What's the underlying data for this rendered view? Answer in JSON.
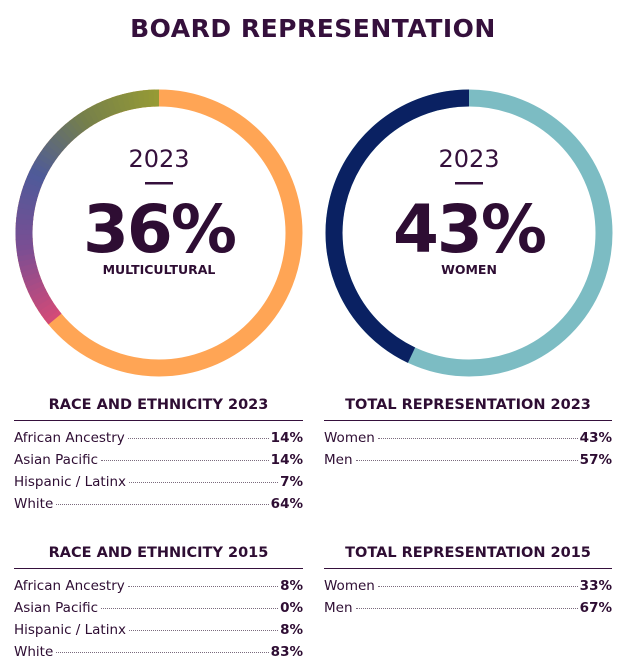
{
  "title": "BOARD REPRESENTATION",
  "chart_data": [
    {
      "type": "pie",
      "variant": "donut",
      "year": "2023",
      "center_value": "36%",
      "center_label": "MULTICULTURAL",
      "slices": [
        {
          "name": "Multicultural",
          "value": 36,
          "color": "gradient"
        },
        {
          "name": "",
          "value": 64,
          "color": "#FFA555"
        }
      ],
      "gradient_colors": [
        "#D24A78",
        "#7B4E93",
        "#4E5A9A",
        "#76804A",
        "#959A35"
      ]
    },
    {
      "type": "pie",
      "variant": "donut",
      "year": "2023",
      "center_value": "43%",
      "center_label": "WOMEN",
      "slices": [
        {
          "name": "Women",
          "value": 43,
          "color": "#0A2162"
        },
        {
          "name": "Men",
          "value": 57,
          "color": "#7CBCC3"
        }
      ]
    }
  ],
  "tables": {
    "race2023": {
      "heading": "RACE AND ETHNICITY 2023",
      "rows": [
        {
          "label": "African Ancestry",
          "value": "14%"
        },
        {
          "label": "Asian Pacific",
          "value": "14%"
        },
        {
          "label": "Hispanic / Latinx",
          "value": "7%"
        },
        {
          "label": "White",
          "value": "64%"
        }
      ]
    },
    "total2023": {
      "heading": "TOTAL REPRESENTATION 2023",
      "rows": [
        {
          "label": "Women",
          "value": "43%"
        },
        {
          "label": "Men",
          "value": "57%"
        }
      ]
    },
    "race2015": {
      "heading": "RACE AND ETHNICITY 2015",
      "rows": [
        {
          "label": "African Ancestry",
          "value": "8%"
        },
        {
          "label": "Asian Pacific",
          "value": "0%"
        },
        {
          "label": "Hispanic / Latinx",
          "value": "8%"
        },
        {
          "label": "White",
          "value": "83%"
        }
      ]
    },
    "total2015": {
      "heading": "TOTAL REPRESENTATION 2015",
      "rows": [
        {
          "label": "Women",
          "value": "33%"
        },
        {
          "label": "Men",
          "value": "67%"
        }
      ]
    }
  }
}
